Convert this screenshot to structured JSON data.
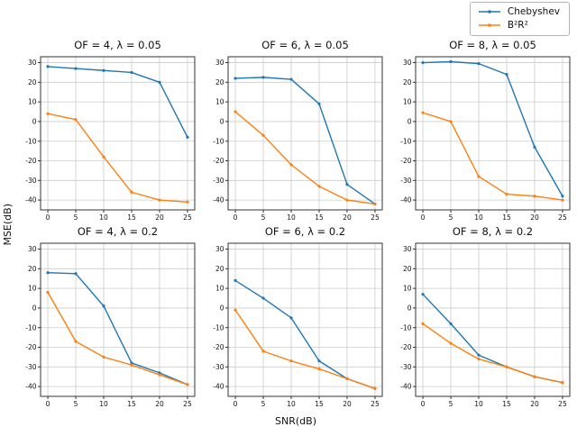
{
  "figure": {
    "xlabel": "SNR(dB)",
    "ylabel": "MSE(dB)"
  },
  "series_colors": [
    "#1f77b4",
    "#ff7f0e"
  ],
  "style_colors": {
    "gridline": "#cccccc",
    "spine": "#333333",
    "legend_border": "#b4b4b4"
  },
  "axes": {
    "x_ticks": [
      0,
      5,
      10,
      15,
      20,
      25
    ],
    "y_ticks": [
      30,
      20,
      10,
      0,
      -10,
      -20,
      -30,
      -40
    ],
    "x_range": [
      -1.3,
      26.3
    ],
    "y_range": [
      -45,
      33
    ],
    "grid": true
  },
  "legend": {
    "position": "upper right"
  },
  "chart_data": [
    {
      "type": "line",
      "title": "OF = 4, λ = 0.05",
      "x": [
        0,
        5,
        10,
        15,
        20,
        25
      ],
      "series": [
        {
          "name": "Chebyshev",
          "values": [
            28,
            27,
            26,
            25,
            20,
            -8
          ]
        },
        {
          "name": "B²R²",
          "values": [
            4,
            1,
            -18,
            -36,
            -40,
            -41
          ]
        }
      ]
    },
    {
      "type": "line",
      "title": "OF = 6, λ = 0.05",
      "x": [
        0,
        5,
        10,
        15,
        20,
        25
      ],
      "series": [
        {
          "name": "Chebyshev",
          "values": [
            22,
            22.5,
            21.5,
            9,
            -32,
            -42
          ]
        },
        {
          "name": "B²R²",
          "values": [
            5,
            -7,
            -22,
            -33,
            -40,
            -42
          ]
        }
      ]
    },
    {
      "type": "line",
      "title": "OF = 8, λ = 0.05",
      "x": [
        0,
        5,
        10,
        15,
        20,
        25
      ],
      "series": [
        {
          "name": "Chebyshev",
          "values": [
            30,
            30.5,
            29.5,
            24,
            -13,
            -38
          ]
        },
        {
          "name": "B²R²",
          "values": [
            4.5,
            0,
            -28,
            -37,
            -38,
            -40
          ]
        }
      ]
    },
    {
      "type": "line",
      "title": "OF = 4, λ = 0.2",
      "x": [
        0,
        5,
        10,
        15,
        20,
        25
      ],
      "series": [
        {
          "name": "Chebyshev",
          "values": [
            18,
            17.5,
            1,
            -28,
            -33,
            -39
          ]
        },
        {
          "name": "B²R²",
          "values": [
            8,
            -17,
            -25,
            -29,
            -34,
            -39
          ]
        }
      ]
    },
    {
      "type": "line",
      "title": "OF = 6, λ = 0.2",
      "x": [
        0,
        5,
        10,
        15,
        20,
        25
      ],
      "series": [
        {
          "name": "Chebyshev",
          "values": [
            14,
            5,
            -5,
            -27,
            -36,
            -41
          ]
        },
        {
          "name": "B²R²",
          "values": [
            -1,
            -22,
            -27,
            -31,
            -36,
            -41
          ]
        }
      ]
    },
    {
      "type": "line",
      "title": "OF = 8, λ = 0.2",
      "x": [
        0,
        5,
        10,
        15,
        20,
        25
      ],
      "series": [
        {
          "name": "Chebyshev",
          "values": [
            7,
            -8,
            -24,
            -30,
            -35,
            -38
          ]
        },
        {
          "name": "B²R²",
          "values": [
            -8,
            -18,
            -26,
            -30,
            -35,
            -38
          ]
        }
      ]
    }
  ]
}
